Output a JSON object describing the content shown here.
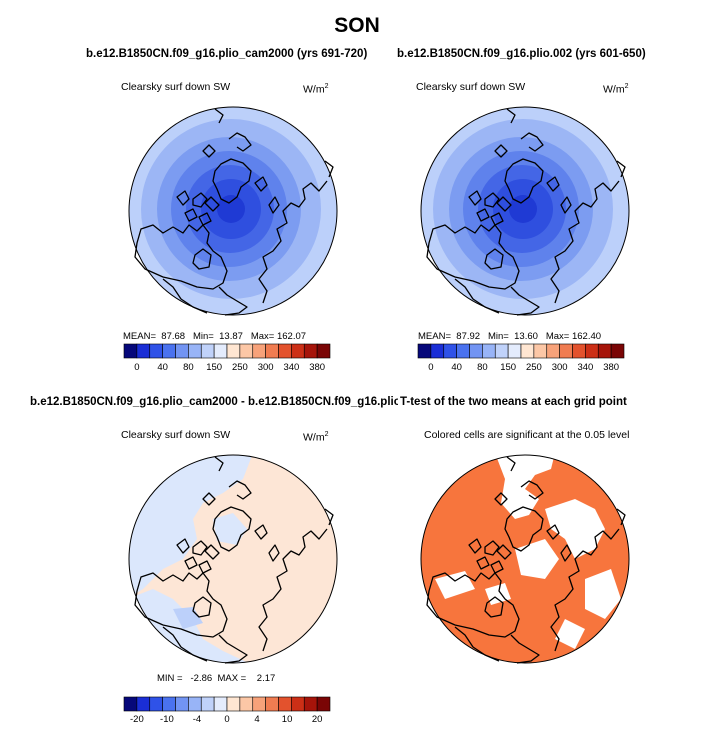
{
  "title": "SON",
  "panels": [
    {
      "case_title": "b.e12.B1850CN.f09_g16.plio_cam2000 (yrs 691-720)",
      "variable": "Clearsky surf down SW",
      "units_base": "W/m",
      "units_exp": "2",
      "stats": {
        "mean_label": "MEAN=",
        "mean": "87.68",
        "min_label": "Min=",
        "min": "13.87",
        "max_label": "Max=",
        "max": "162.07"
      }
    },
    {
      "case_title": "b.e12.B1850CN.f09_g16.plio.002 (yrs 601-650)",
      "variable": "Clearsky surf down SW",
      "units_base": "W/m",
      "units_exp": "2",
      "stats": {
        "mean_label": "MEAN=",
        "mean": "87.92",
        "min_label": "Min=",
        "min": "13.60",
        "max_label": "Max=",
        "max": "162.40"
      }
    },
    {
      "case_title": "b.e12.B1850CN.f09_g16.plio_cam2000 - b.e12.B1850CN.f09_g16.plio.002",
      "variable": "Clearsky surf down SW",
      "units_base": "W/m",
      "units_exp": "2",
      "stats_text": "MIN =   -2.86  MAX =    2.17"
    },
    {
      "case_title": "T-test of the two means at each grid point",
      "variable": "Colored cells are significant at the 0.05 level"
    }
  ],
  "colorbar_abs": {
    "labels": [
      "0",
      "40",
      "80",
      "150",
      "250",
      "300",
      "340",
      "380"
    ],
    "colors": [
      "#06087a",
      "#1a2ed6",
      "#2f52e8",
      "#4a72ef",
      "#7294f3",
      "#98b4f7",
      "#c0d2fa",
      "#e4ecfd",
      "#ffe6d2",
      "#fcc7a6",
      "#f7a27a",
      "#f07c51",
      "#e3522d",
      "#cc2f16",
      "#a6140a",
      "#7a0505"
    ]
  },
  "colorbar_diff": {
    "labels": [
      "-20",
      "-10",
      "-4",
      "0",
      "4",
      "10",
      "20"
    ],
    "colors": [
      "#06087a",
      "#1a2ed6",
      "#2f52e8",
      "#4a72ef",
      "#7294f3",
      "#98b4f7",
      "#c0d2fa",
      "#e4ecfd",
      "#ffe6d2",
      "#fcc7a6",
      "#f7a27a",
      "#f07c51",
      "#e3522d",
      "#cc2f16",
      "#a6140a",
      "#7a0505"
    ]
  },
  "map_colors": {
    "abs_rings": [
      "#bcd0fa",
      "#9cb6f5",
      "#7c9cf1",
      "#5f82ec",
      "#4466e6",
      "#2f4fdf",
      "#1f3ad4"
    ],
    "diff_negative": "#dbe7fc",
    "diff_positive": "#fde6d6",
    "ttest_significant": "#f7753d",
    "ttest_not_significant": "#ffffff"
  }
}
